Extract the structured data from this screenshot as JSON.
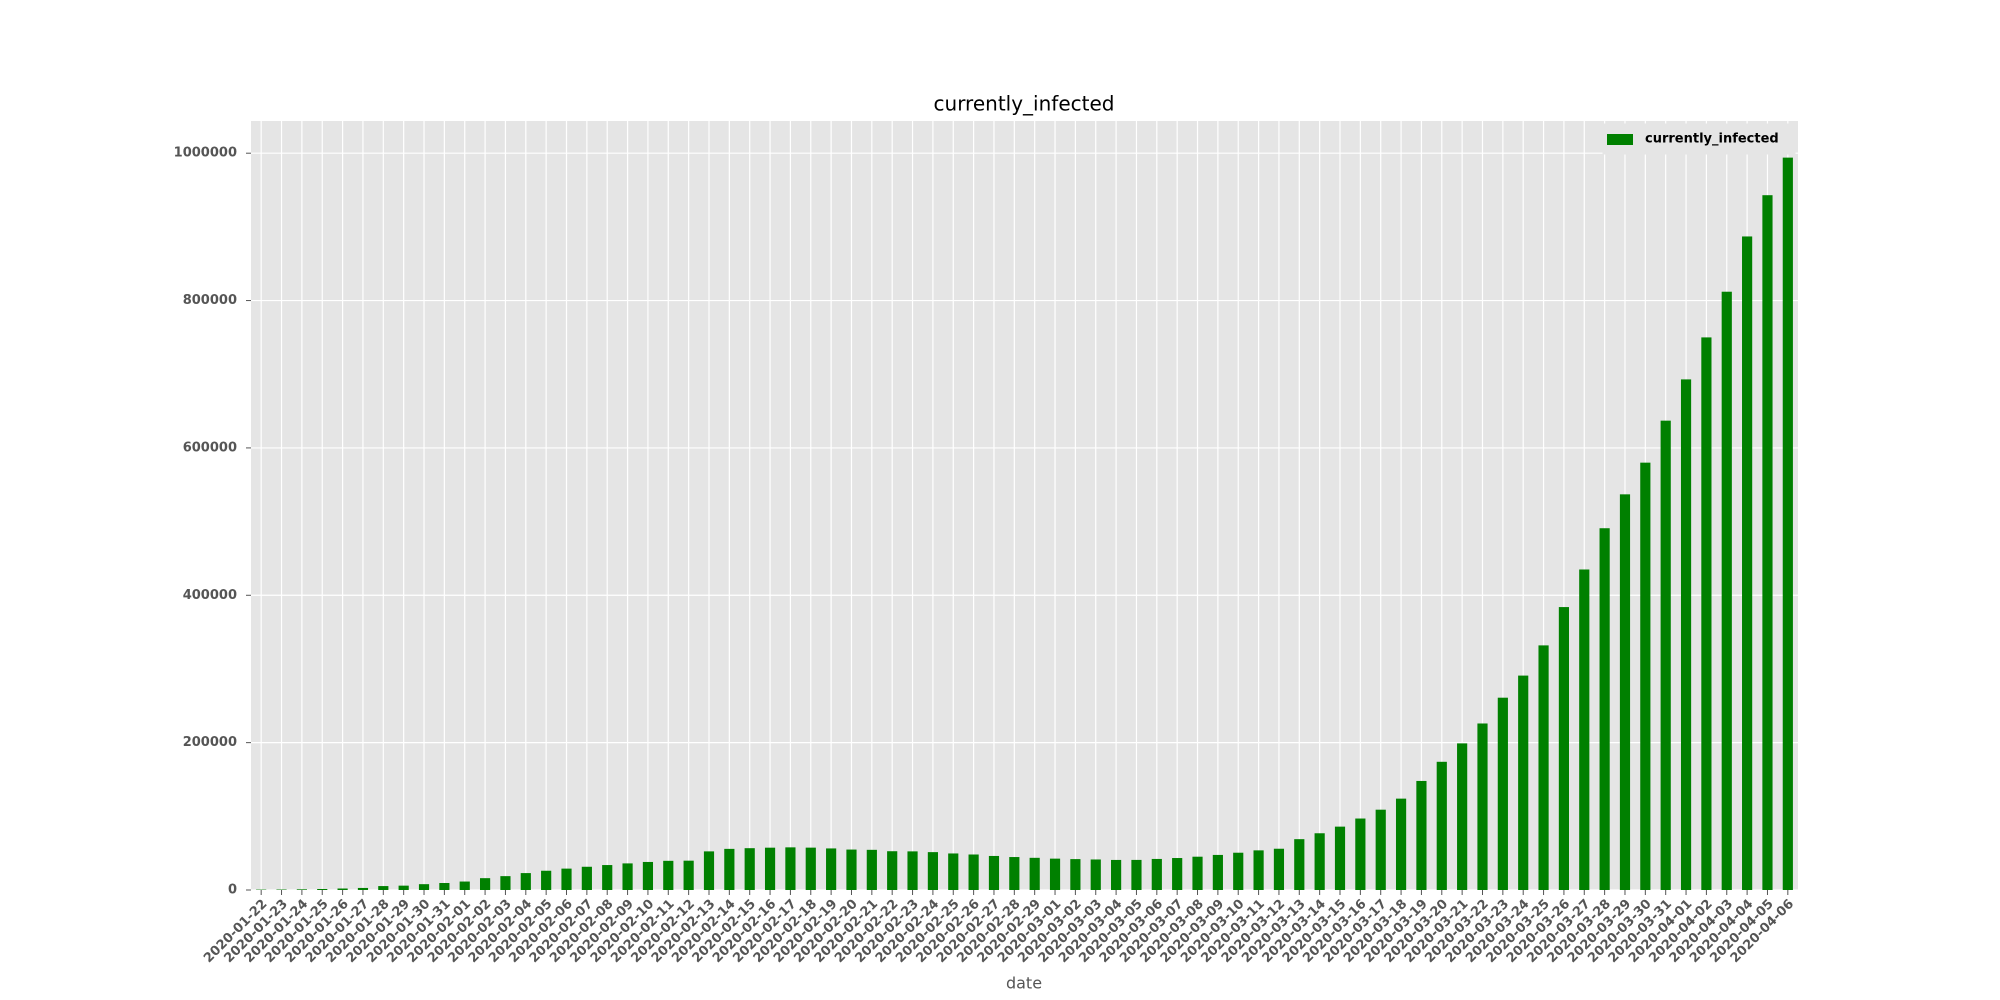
{
  "chart_data": {
    "type": "bar",
    "title": "currently_infected",
    "x_label": "date",
    "categories": [
      "2020-01-22",
      "2020-01-23",
      "2020-01-24",
      "2020-01-25",
      "2020-01-26",
      "2020-01-27",
      "2020-01-28",
      "2020-01-29",
      "2020-01-30",
      "2020-01-31",
      "2020-02-01",
      "2020-02-02",
      "2020-02-03",
      "2020-02-04",
      "2020-02-05",
      "2020-02-06",
      "2020-02-07",
      "2020-02-08",
      "2020-02-09",
      "2020-02-10",
      "2020-02-11",
      "2020-02-12",
      "2020-02-13",
      "2020-02-14",
      "2020-02-15",
      "2020-02-16",
      "2020-02-17",
      "2020-02-18",
      "2020-02-19",
      "2020-02-20",
      "2020-02-21",
      "2020-02-22",
      "2020-02-23",
      "2020-02-24",
      "2020-02-25",
      "2020-02-26",
      "2020-02-27",
      "2020-02-28",
      "2020-02-29",
      "2020-03-01",
      "2020-03-02",
      "2020-03-03",
      "2020-03-04",
      "2020-03-05",
      "2020-03-06",
      "2020-03-07",
      "2020-03-08",
      "2020-03-09",
      "2020-03-10",
      "2020-03-11",
      "2020-03-12",
      "2020-03-13",
      "2020-03-14",
      "2020-03-15",
      "2020-03-16",
      "2020-03-17",
      "2020-03-18",
      "2020-03-19",
      "2020-03-20",
      "2020-03-21",
      "2020-03-22",
      "2020-03-23",
      "2020-03-24",
      "2020-03-25",
      "2020-03-26",
      "2020-03-27",
      "2020-03-28",
      "2020-03-29",
      "2020-03-30",
      "2020-03-31",
      "2020-04-01",
      "2020-04-02",
      "2020-04-03",
      "2020-04-04",
      "2020-04-05",
      "2020-04-06"
    ],
    "series": [
      {
        "name": "currently_infected",
        "color": "#008000",
        "values": [
          510,
          606,
          879,
          1353,
          2010,
          2784,
          5340,
          5908,
          7921,
          9493,
          11482,
          16072,
          18817,
          22953,
          26135,
          29021,
          31534,
          33862,
          36111,
          38054,
          39596,
          39805,
          52416,
          55822,
          56760,
          57437,
          57872,
          57494,
          56417,
          54874,
          54520,
          52626,
          52425,
          51402,
          49592,
          48183,
          46195,
          44733,
          43669,
          42564,
          41929,
          41416,
          40802,
          40844,
          42150,
          43400,
          45200,
          47600,
          50600,
          53800,
          56000,
          69000,
          77000,
          86000,
          97000,
          109000,
          124000,
          148000,
          174000,
          199000,
          226000,
          261000,
          291000,
          332000,
          384000,
          435000,
          491000,
          537000,
          580000,
          637000,
          693000,
          750000,
          812000,
          887000,
          943000,
          994000
        ]
      }
    ],
    "ylim": [
      0,
      1043700
    ],
    "yticks": [
      0,
      200000,
      400000,
      600000,
      800000,
      1000000
    ],
    "grid": true,
    "legend": "upper right"
  }
}
